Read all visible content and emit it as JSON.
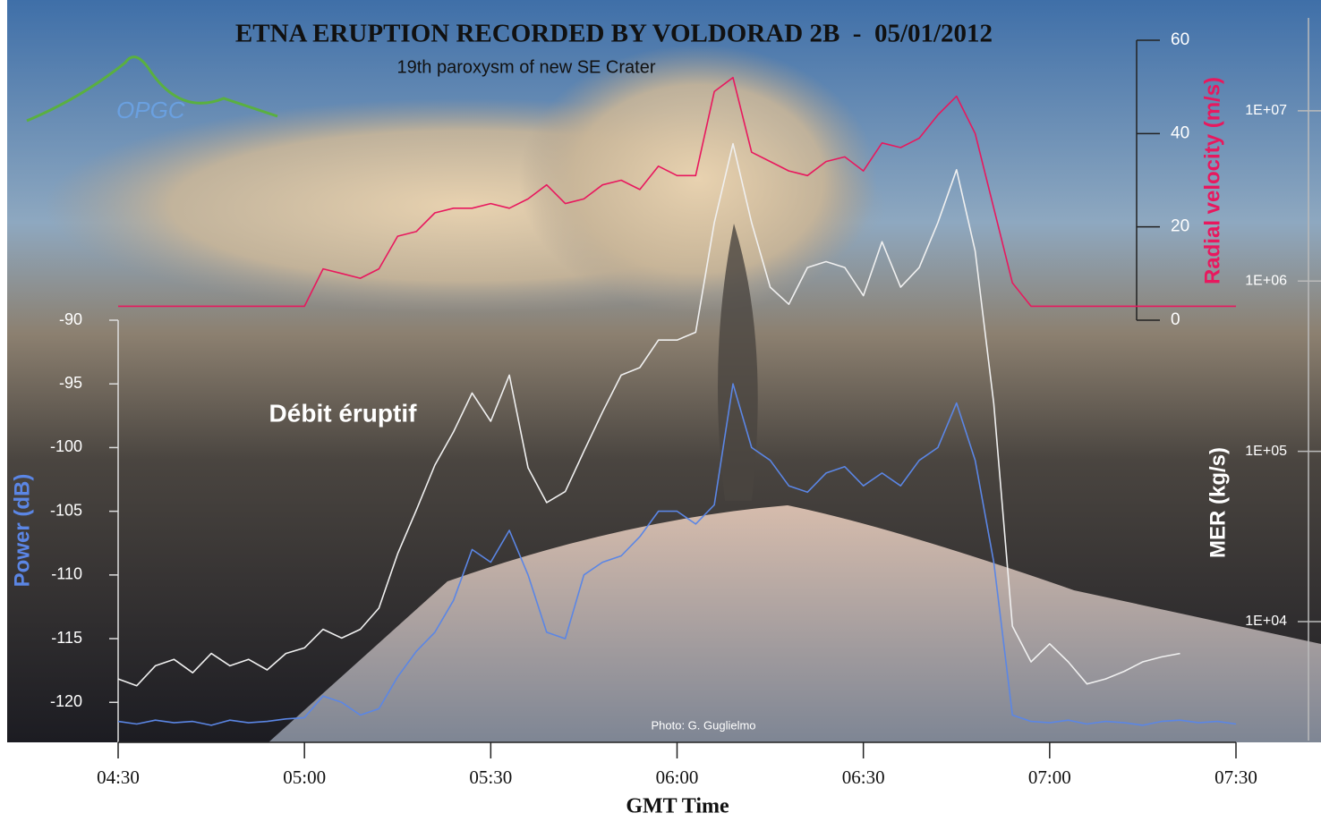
{
  "chart_data": {
    "type": "line",
    "title": "ETNA ERUPTION RECORDED BY VOLDORAD 2B  -  05/01/2012",
    "subtitle": "19th paroxysm of new SE Crater",
    "logo": "OPGC",
    "credit": "Photo: G. Guglielmo",
    "annotation": "Débit éruptif",
    "xlabel": "GMT Time",
    "xlim": [
      270,
      450
    ],
    "xticks": [
      {
        "value": 270,
        "label": "04:30"
      },
      {
        "value": 300,
        "label": "05:00"
      },
      {
        "value": 330,
        "label": "05:30"
      },
      {
        "value": 360,
        "label": "06:00"
      },
      {
        "value": 390,
        "label": "06:30"
      },
      {
        "value": 420,
        "label": "07:00"
      },
      {
        "value": 450,
        "label": "07:30"
      }
    ],
    "ylim": [
      -123,
      -90
    ],
    "yticks": [
      -90,
      -95,
      -100,
      -105,
      -110,
      -115,
      -120
    ],
    "y2lim": [
      0,
      60
    ],
    "y2ticks": [
      0,
      20,
      40,
      60
    ],
    "y3lim": [
      2000,
      30000000
    ],
    "y3scale": "log",
    "y3ticks": [
      {
        "value": 10000,
        "label": "1E+04"
      },
      {
        "value": 100000,
        "label": "1E+05"
      },
      {
        "value": 1000000,
        "label": "1E+06"
      },
      {
        "value": 10000000,
        "label": "1E+07"
      }
    ],
    "x": [
      270,
      273,
      276,
      279,
      282,
      285,
      288,
      291,
      294,
      297,
      300,
      303,
      306,
      309,
      312,
      315,
      318,
      321,
      324,
      327,
      330,
      333,
      336,
      339,
      342,
      345,
      348,
      351,
      354,
      357,
      360,
      363,
      366,
      369,
      372,
      375,
      378,
      381,
      384,
      387,
      390,
      393,
      396,
      399,
      402,
      405,
      408,
      411,
      414,
      417,
      420,
      423,
      426,
      429,
      432,
      435,
      438,
      441,
      444,
      447,
      450
    ],
    "series": [
      {
        "name": "Power (dB)",
        "color": "#5b86e5",
        "axis": "y",
        "values": [
          -121.5,
          -121.7,
          -121.4,
          -121.6,
          -121.5,
          -121.8,
          -121.4,
          -121.6,
          -121.5,
          -121.3,
          -121.2,
          -119.5,
          -120,
          -121,
          -120.5,
          -118,
          -116,
          -114.5,
          -112,
          -108,
          -109,
          -106.5,
          -110,
          -114.5,
          -115,
          -110,
          -109,
          -108.5,
          -107,
          -105,
          -105,
          -106,
          -104.5,
          -95,
          -100,
          -101,
          -103,
          -103.5,
          -102,
          -101.5,
          -103,
          -102,
          -103,
          -101,
          -100,
          -96.5,
          -101,
          -109,
          -121,
          -121.5,
          -121.6,
          -121.4,
          -121.7,
          -121.5,
          -121.6,
          -121.8,
          -121.5,
          -121.4,
          -121.6,
          -121.5,
          -121.7
        ]
      },
      {
        "name": "Radial velocity (m/s)",
        "color": "#e8185e",
        "axis": "y2",
        "values": [
          3,
          3,
          3,
          3,
          3,
          3,
          3,
          3,
          3,
          3,
          3,
          11,
          10,
          9,
          11,
          18,
          19,
          23,
          24,
          24,
          25,
          24,
          26,
          29,
          25,
          26,
          29,
          30,
          28,
          33,
          31,
          31,
          49,
          52,
          36,
          34,
          32,
          31,
          34,
          35,
          32,
          38,
          37,
          39,
          44,
          48,
          40,
          24,
          8,
          3,
          3,
          3,
          3,
          3,
          3,
          3,
          3,
          3,
          3,
          3,
          3
        ]
      },
      {
        "name": "MER (kg/s)",
        "color": "#f0f0f0",
        "axis": "y3",
        "values": [
          4600,
          4200,
          5500,
          6000,
          5000,
          6500,
          5500,
          6000,
          5200,
          6500,
          7000,
          9000,
          8000,
          9000,
          12000,
          25000,
          45000,
          83000,
          130000,
          220000,
          150000,
          280000,
          80000,
          50000,
          58000,
          100000,
          170000,
          280000,
          310000,
          450000,
          450000,
          500000,
          2200000,
          6400000,
          2200000,
          920000,
          730000,
          1200000,
          1300000,
          1200000,
          820000,
          1700000,
          920000,
          1200000,
          2200000,
          4500000,
          1500000,
          190000,
          9400,
          5800,
          7400,
          5800,
          4300,
          4600,
          5100,
          5800,
          6200,
          6500,
          null,
          null,
          null
        ]
      }
    ]
  }
}
